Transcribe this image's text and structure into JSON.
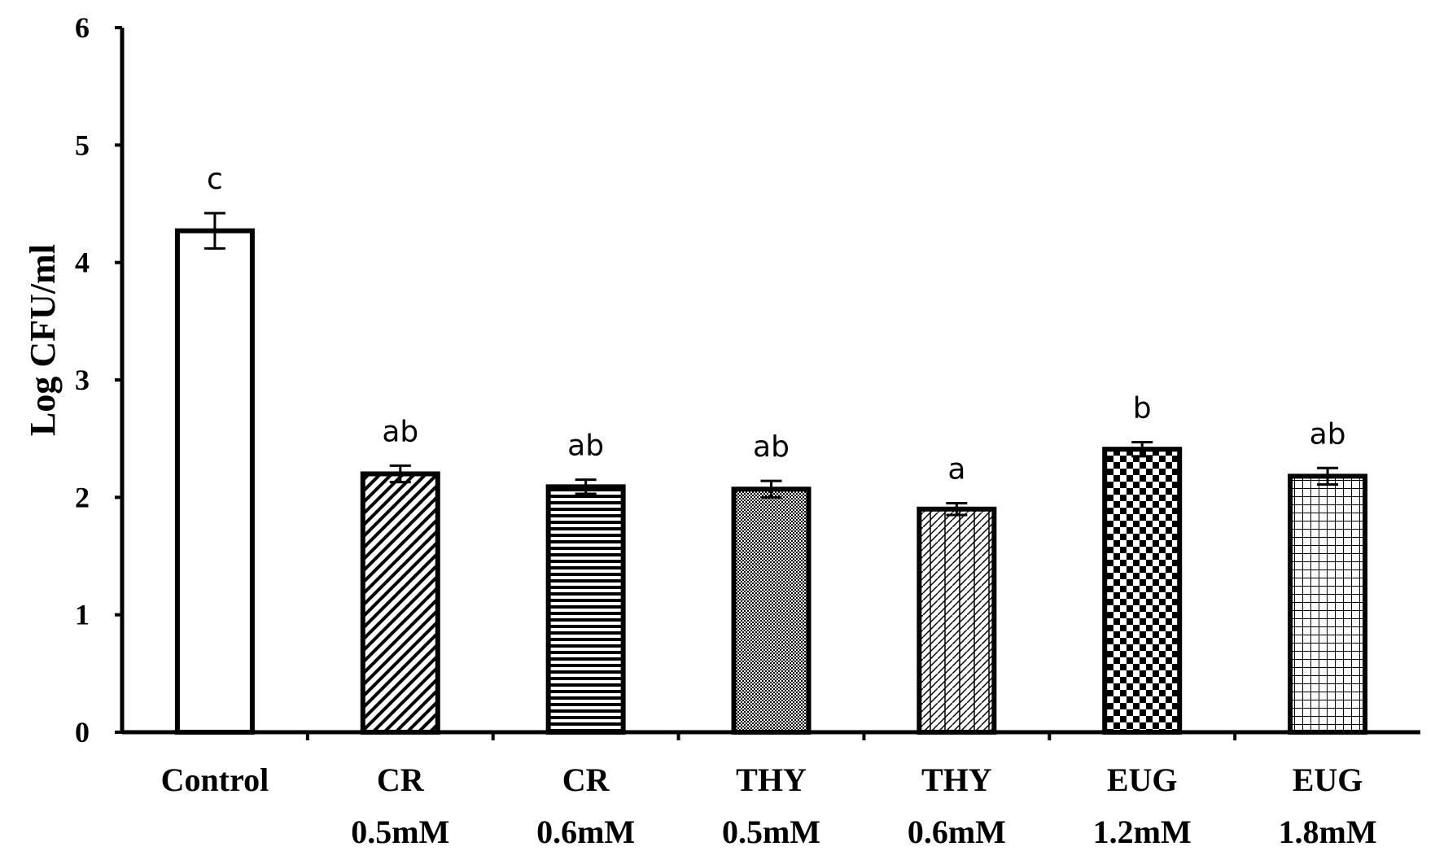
{
  "chart_data": {
    "type": "bar",
    "title": "",
    "xlabel": "",
    "ylabel": "Log CFU/ml",
    "ylim": [
      0,
      6
    ],
    "yticks": [
      "0",
      "1",
      "2",
      "3",
      "4",
      "5",
      "6"
    ],
    "grid": false,
    "categories": [
      {
        "line1": "Control",
        "line2": ""
      },
      {
        "line1": "CR",
        "line2": "0.5mM"
      },
      {
        "line1": "CR",
        "line2": "0.6mM"
      },
      {
        "line1": "THY",
        "line2": "0.5mM"
      },
      {
        "line1": "THY",
        "line2": "0.6mM"
      },
      {
        "line1": "EUG",
        "line2": "1.2mM"
      },
      {
        "line1": "EUG",
        "line2": "1.8mM"
      }
    ],
    "values": [
      4.27,
      2.2,
      2.09,
      2.07,
      1.9,
      2.41,
      2.18
    ],
    "errors": [
      0.15,
      0.07,
      0.06,
      0.07,
      0.05,
      0.06,
      0.07
    ],
    "significance": [
      "c",
      "ab",
      "ab",
      "ab",
      "a",
      "b",
      "ab"
    ],
    "patterns": [
      "none",
      "diagonal",
      "horizontal",
      "fine-dots",
      "zigzag",
      "checker",
      "grid"
    ],
    "colors": {
      "bar_stroke": "#000000",
      "bar_fill": "#ffffff",
      "axis": "#000000"
    }
  }
}
